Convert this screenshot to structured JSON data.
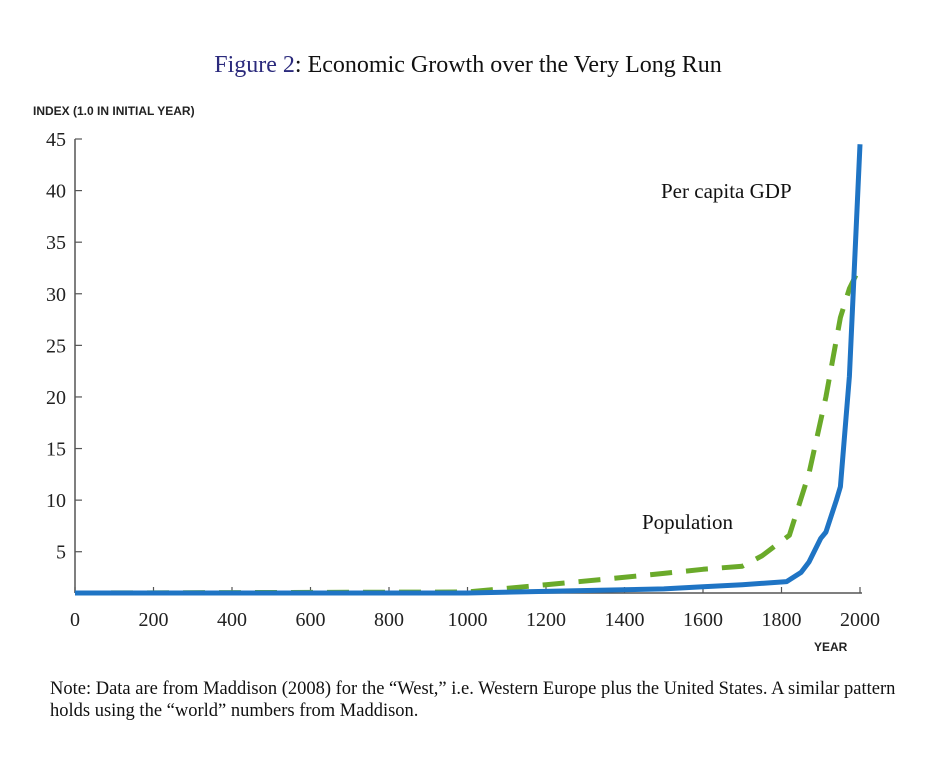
{
  "chart_data": {
    "type": "line",
    "title_prefix": "Figure 2",
    "title_rest": ": Economic Growth over the Very Long Run",
    "ylabel": "INDEX (1.0 IN INITIAL YEAR)",
    "xlabel": "YEAR",
    "xlim": [
      0,
      2000
    ],
    "ylim": [
      1,
      45
    ],
    "xticks": [
      0,
      200,
      400,
      600,
      800,
      1000,
      1200,
      1400,
      1600,
      1800,
      2000
    ],
    "yticks": [
      5,
      10,
      15,
      20,
      25,
      30,
      35,
      40,
      45
    ],
    "grid": false,
    "series": [
      {
        "name": "Per capita GDP",
        "color": "#1f74c4",
        "style": "solid",
        "x": [
          0,
          1000,
          1500,
          1600,
          1700,
          1813,
          1850,
          1870,
          1900,
          1913,
          1940,
          1950,
          1973,
          2000
        ],
        "y": [
          1,
          1,
          1.4,
          1.6,
          1.8,
          2.1,
          3.0,
          4.0,
          6.3,
          6.9,
          10,
          11.3,
          22,
          44.5
        ]
      },
      {
        "name": "Population",
        "color": "#6aaa2a",
        "style": "dashed",
        "x": [
          0,
          1000,
          1200,
          1340,
          1500,
          1600,
          1700,
          1750,
          1820,
          1870,
          1913,
          1950,
          1973,
          2000
        ],
        "y": [
          1,
          1.1,
          1.8,
          2.3,
          2.9,
          3.3,
          3.6,
          4.6,
          6.6,
          12.6,
          20,
          27.7,
          30.5,
          32.6
        ]
      }
    ],
    "annotations": [
      "Per capita GDP",
      "Population"
    ]
  },
  "note": "Note: Data are from Maddison (2008) for the “West,” i.e. Western Europe plus the United States. A similar pattern holds using the “world” numbers from Maddison."
}
